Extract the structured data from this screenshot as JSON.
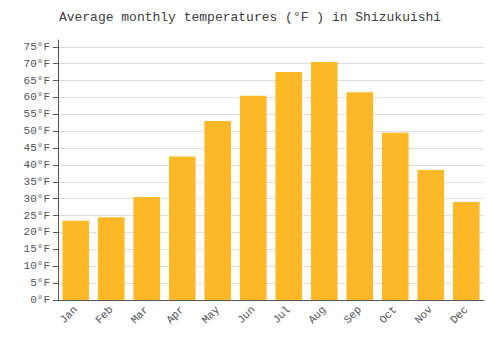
{
  "chart_data": {
    "type": "bar",
    "title": "Average monthly temperatures (°F ) in Shizukuishi",
    "categories": [
      "Jan",
      "Feb",
      "Mar",
      "Apr",
      "May",
      "Jun",
      "Jul",
      "Aug",
      "Sep",
      "Oct",
      "Nov",
      "Dec"
    ],
    "values": [
      23.5,
      24.5,
      30.5,
      42.5,
      53.0,
      60.5,
      67.5,
      70.5,
      61.5,
      49.5,
      38.5,
      29.0
    ],
    "color": "#FDB827",
    "ylim": [
      0,
      77
    ],
    "yticks": [
      {
        "value": 0,
        "label": "0°F"
      },
      {
        "value": 5,
        "label": "5°F"
      },
      {
        "value": 10,
        "label": "10°F"
      },
      {
        "value": 15,
        "label": "15°F"
      },
      {
        "value": 20,
        "label": "20°F"
      },
      {
        "value": 25,
        "label": "25°F"
      },
      {
        "value": 30,
        "label": "30°F"
      },
      {
        "value": 35,
        "label": "35°F"
      },
      {
        "value": 40,
        "label": "40°F"
      },
      {
        "value": 45,
        "label": "45°F"
      },
      {
        "value": 50,
        "label": "50°F"
      },
      {
        "value": 55,
        "label": "55°F"
      },
      {
        "value": 60,
        "label": "60°F"
      },
      {
        "value": 65,
        "label": "65°F"
      },
      {
        "value": 70,
        "label": "70°F"
      },
      {
        "value": 75,
        "label": "75°F"
      }
    ],
    "grid": true
  }
}
